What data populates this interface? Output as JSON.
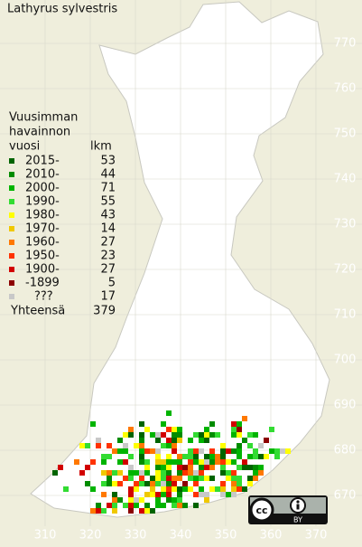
{
  "title": "Lathyrus sylvestris",
  "legend": {
    "heading": [
      "Vuusimman",
      "havainnon",
      "vuosi"
    ],
    "count_heading": "lkm",
    "rows": [
      {
        "label": "2015-",
        "count": 53,
        "color": "#006400"
      },
      {
        "label": "2010-",
        "count": 44,
        "color": "#008c00"
      },
      {
        "label": "2000-",
        "count": 71,
        "color": "#00b400"
      },
      {
        "label": "1990-",
        "count": 55,
        "color": "#32dc32"
      },
      {
        "label": "1980-",
        "count": 43,
        "color": "#ffff00"
      },
      {
        "label": "1970-",
        "count": 14,
        "color": "#f0c800"
      },
      {
        "label": "1960-",
        "count": 27,
        "color": "#ff7800"
      },
      {
        "label": "1950-",
        "count": 23,
        "color": "#ff3200"
      },
      {
        "label": "1900-",
        "count": 27,
        "color": "#d20000"
      },
      {
        "label": "-1899",
        "count": 5,
        "color": "#8c0000"
      },
      {
        "label": "???",
        "count": 17,
        "color": "#c8c8c8"
      }
    ],
    "total_label": "Yhteensä",
    "total": 379
  },
  "grid": {
    "xticks": [
      310,
      320,
      330,
      340,
      350,
      360,
      370
    ],
    "yticks": [
      670,
      680,
      690,
      700,
      710,
      720,
      730,
      740,
      750,
      760,
      770
    ]
  },
  "license": {
    "cc": "cc",
    "by": "BY"
  }
}
